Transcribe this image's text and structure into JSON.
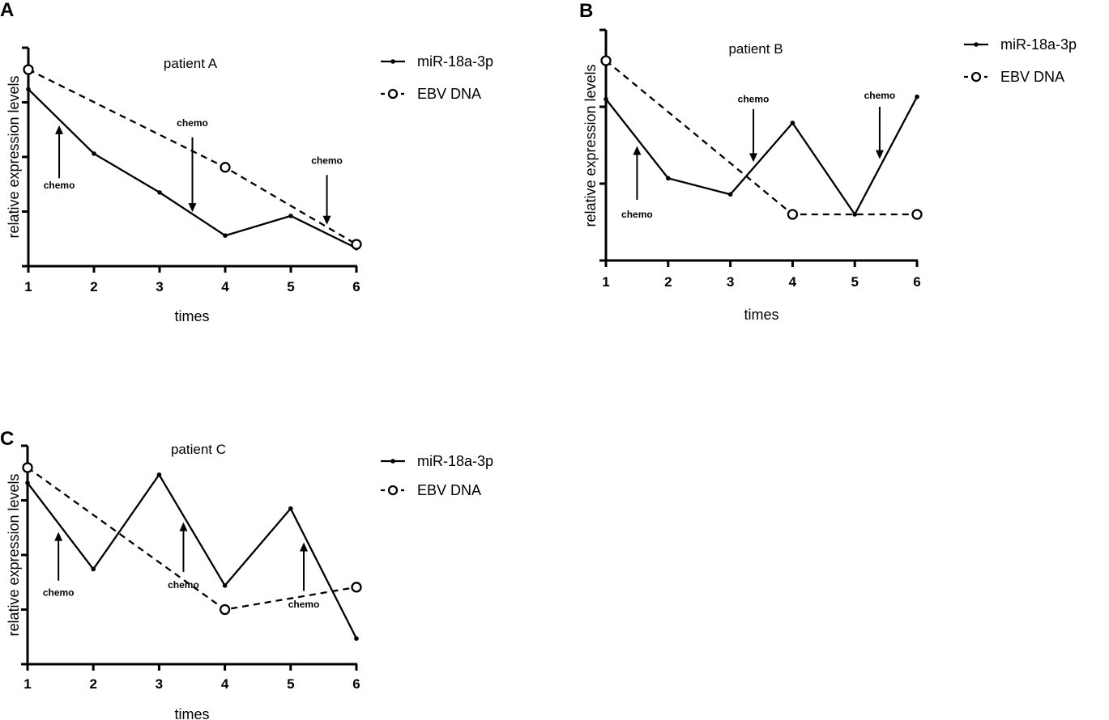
{
  "chart_data": [
    {
      "panel": "A",
      "type": "line",
      "title": "patient A",
      "xlabel": "times",
      "ylabel": "relative expression levels",
      "x": [
        1,
        2,
        3,
        4,
        5,
        6
      ],
      "xticks": [
        "1",
        "2",
        "3",
        "4",
        "5",
        "6"
      ],
      "ylim": [
        0,
        4
      ],
      "yticks": [
        0,
        1,
        2,
        3,
        4
      ],
      "series": [
        {
          "name": "miR-18a-3p",
          "style": "solid-dot",
          "x": [
            1,
            2,
            3,
            4,
            5,
            6
          ],
          "values": [
            3.24,
            2.06,
            1.35,
            0.56,
            0.92,
            0.33
          ]
        },
        {
          "name": "EBV DNA",
          "style": "dashed-circle",
          "x": [
            1,
            4,
            6
          ],
          "values": [
            3.6,
            1.81,
            0.4
          ]
        }
      ],
      "annotations": [
        {
          "text": "chemo",
          "x": 1.47,
          "from": 1.61,
          "to": 2.58,
          "label_y": 1.48
        },
        {
          "text": "chemo",
          "x": 3.5,
          "from": 2.36,
          "to": 0.99,
          "label_y": 2.62
        },
        {
          "text": "chemo",
          "x": 5.55,
          "from": 1.67,
          "to": 0.76,
          "label_y": 1.93
        }
      ],
      "legend": "right"
    },
    {
      "panel": "B",
      "type": "line",
      "title": "patient B",
      "xlabel": "times",
      "ylabel": "relative expression levels",
      "x": [
        1,
        2,
        3,
        4,
        5,
        6
      ],
      "xticks": [
        "1",
        "2",
        "3",
        "4",
        "5",
        "6"
      ],
      "ylim": [
        0,
        3
      ],
      "yticks": [
        0,
        1,
        2,
        3
      ],
      "series": [
        {
          "name": "miR-18a-3p",
          "style": "solid-dot",
          "x": [
            1,
            2,
            3,
            4,
            5,
            6
          ],
          "values": [
            2.1,
            1.07,
            0.86,
            1.79,
            0.6,
            2.13
          ]
        },
        {
          "name": "EBV DNA",
          "style": "dashed-circle",
          "x": [
            1,
            4,
            6
          ],
          "values": [
            2.6,
            0.6,
            0.6
          ]
        }
      ],
      "annotations": [
        {
          "text": "chemo",
          "x": 1.5,
          "from": 0.79,
          "to": 1.49,
          "label_y": 0.6
        },
        {
          "text": "chemo",
          "x": 3.37,
          "from": 1.97,
          "to": 1.28,
          "label_y": 2.1
        },
        {
          "text": "chemo",
          "x": 5.4,
          "from": 2.0,
          "to": 1.32,
          "label_y": 2.15
        }
      ],
      "legend": "right"
    },
    {
      "panel": "C",
      "type": "line",
      "title": "patient C",
      "xlabel": "times",
      "ylabel": "relative expression levels",
      "x": [
        1,
        2,
        3,
        4,
        5,
        6
      ],
      "xticks": [
        "1",
        "2",
        "3",
        "4",
        "5",
        "6"
      ],
      "ylim": [
        0,
        4
      ],
      "yticks": [
        0,
        1,
        2,
        3,
        4
      ],
      "series": [
        {
          "name": "miR-18a-3p",
          "style": "solid-dot",
          "x": [
            1,
            2,
            3,
            4,
            5,
            6
          ],
          "values": [
            3.32,
            1.74,
            3.47,
            1.44,
            2.85,
            0.47
          ]
        },
        {
          "name": "EBV DNA",
          "style": "dashed-circle",
          "x": [
            1,
            4,
            6
          ],
          "values": [
            3.6,
            1.0,
            1.41
          ]
        }
      ],
      "annotations": [
        {
          "text": "chemo",
          "x": 1.47,
          "from": 1.53,
          "to": 2.42,
          "label_y": 1.31
        },
        {
          "text": "chemo",
          "x": 3.37,
          "from": 1.69,
          "to": 2.6,
          "label_y": 1.45
        },
        {
          "text": "chemo",
          "x": 5.2,
          "from": 1.34,
          "to": 2.23,
          "label_y": 1.1
        }
      ],
      "legend": "right"
    }
  ]
}
